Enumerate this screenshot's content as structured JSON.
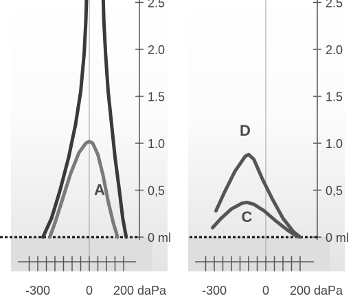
{
  "chart_data": [
    {
      "type": "line",
      "panel": "left",
      "x_ticks": [
        -300,
        0,
        200
      ],
      "x_tick_labels": [
        "-300",
        "0",
        "200"
      ],
      "x_unit": "daPa",
      "y_ticks": [
        0,
        0.5,
        1.0,
        1.5,
        2.0,
        2.5
      ],
      "y_tick_labels": [
        "0 ml",
        "0,5",
        "1.0",
        "1.5",
        "2.0",
        "2.5"
      ],
      "xlim": [
        -390,
        240
      ],
      "ylim": [
        -0.3,
        2.6
      ],
      "series": [
        {
          "name": "A",
          "color": "#7a7a7a",
          "points": [
            [
              -230,
              0
            ],
            [
              -200,
              0.15
            ],
            [
              -160,
              0.38
            ],
            [
              -110,
              0.67
            ],
            [
              -60,
              0.9
            ],
            [
              -20,
              1.0
            ],
            [
              0,
              1.02
            ],
            [
              20,
              1.0
            ],
            [
              50,
              0.88
            ],
            [
              80,
              0.66
            ],
            [
              110,
              0.38
            ],
            [
              140,
              0.15
            ],
            [
              165,
              0
            ]
          ]
        },
        {
          "name": "",
          "color": "#3a3a3a",
          "points": [
            [
              -270,
              0
            ],
            [
              -220,
              0.2
            ],
            [
              -170,
              0.5
            ],
            [
              -120,
              0.85
            ],
            [
              -80,
              1.2
            ],
            [
              -50,
              1.55
            ],
            [
              -30,
              1.95
            ],
            [
              -20,
              2.3
            ],
            [
              -15,
              2.6
            ]
          ]
        },
        {
          "name": "",
          "color": "#3a3a3a",
          "points": [
            [
              80,
              2.6
            ],
            [
              85,
              2.3
            ],
            [
              95,
              1.95
            ],
            [
              110,
              1.55
            ],
            [
              130,
              1.2
            ],
            [
              150,
              0.85
            ],
            [
              175,
              0.5
            ],
            [
              195,
              0.2
            ],
            [
              215,
              0
            ]
          ]
        }
      ],
      "labels": [
        {
          "text": "A",
          "x": 60,
          "y": 0.45
        }
      ]
    },
    {
      "type": "line",
      "panel": "right",
      "x_ticks": [
        -300,
        0,
        200
      ],
      "x_tick_labels": [
        "-300",
        "0",
        "200"
      ],
      "x_unit": "daPa",
      "y_ticks": [
        0,
        0.5,
        1.0,
        1.5,
        2.0,
        2.5
      ],
      "y_tick_labels": [
        "0 ml",
        "0,5",
        "1.0",
        "1.5",
        "2.0",
        "2.5"
      ],
      "xlim": [
        -410,
        240
      ],
      "ylim": [
        -0.3,
        2.6
      ],
      "series": [
        {
          "name": "D",
          "color": "#555555",
          "points": [
            [
              -290,
              0.28
            ],
            [
              -240,
              0.48
            ],
            [
              -180,
              0.7
            ],
            [
              -120,
              0.86
            ],
            [
              -100,
              0.88
            ],
            [
              -70,
              0.83
            ],
            [
              -20,
              0.62
            ],
            [
              40,
              0.4
            ],
            [
              100,
              0.2
            ],
            [
              160,
              0.06
            ],
            [
              200,
              0
            ]
          ]
        },
        {
          "name": "C",
          "color": "#555555",
          "points": [
            [
              -310,
              0.1
            ],
            [
              -260,
              0.2
            ],
            [
              -200,
              0.3
            ],
            [
              -140,
              0.36
            ],
            [
              -110,
              0.37
            ],
            [
              -70,
              0.35
            ],
            [
              -10,
              0.28
            ],
            [
              60,
              0.17
            ],
            [
              130,
              0.07
            ],
            [
              180,
              0.01
            ],
            [
              200,
              0
            ]
          ]
        }
      ],
      "labels": [
        {
          "text": "D",
          "x": -120,
          "y": 1.08
        },
        {
          "text": "C",
          "x": -110,
          "y": 0.16
        }
      ]
    }
  ]
}
